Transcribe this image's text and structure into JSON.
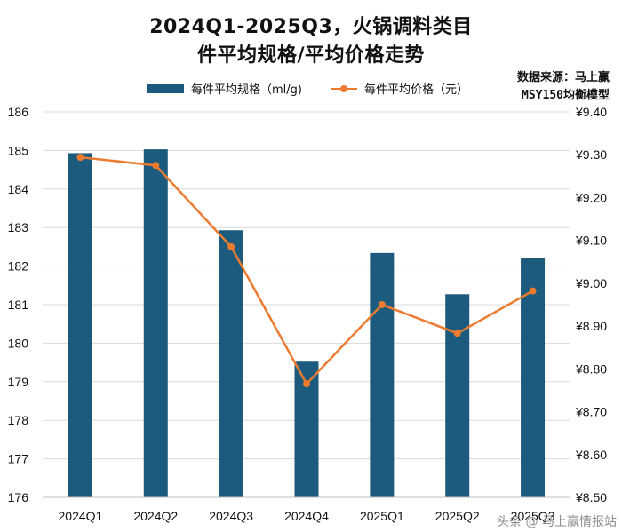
{
  "title": {
    "line1": "2024Q1-2025Q3，火锅调料类目",
    "line2": "件平均规格/平均价格走势"
  },
  "source": {
    "line1": "数据来源：马上赢",
    "line2": "MSY150均衡模型"
  },
  "watermark": "头条 @ 马上赢情报站",
  "colors": {
    "bar": "#1c5b7d",
    "line": "#ec7a2f",
    "grid": "#d9d9d9",
    "text": "#111111"
  },
  "chart_data": {
    "type": "bar+line",
    "categories": [
      "2024Q1",
      "2024Q2",
      "2024Q3",
      "2024Q4",
      "2025Q1",
      "2025Q2",
      "2025Q3"
    ],
    "series": [
      {
        "name": "每件平均规格（ml/g)",
        "type": "bar",
        "axis": "left",
        "values": [
          184.93,
          185.03,
          182.93,
          179.52,
          182.34,
          181.27,
          182.2
        ]
      },
      {
        "name": "每件平均价格（元）",
        "type": "line",
        "axis": "right",
        "values": [
          9.294,
          9.275,
          9.085,
          8.765,
          8.95,
          8.883,
          8.982
        ]
      }
    ],
    "y_left": {
      "min": 176,
      "max": 186,
      "ticks": [
        "186",
        "185",
        "184",
        "183",
        "182",
        "181",
        "180",
        "179",
        "178",
        "177",
        "176"
      ]
    },
    "y_right": {
      "min": 8.5,
      "max": 9.4,
      "ticks": [
        "¥9.40",
        "¥9.30",
        "¥9.20",
        "¥9.10",
        "¥9.00",
        "¥8.90",
        "¥8.80",
        "¥8.70",
        "¥8.60",
        "¥8.50"
      ]
    },
    "grid": true,
    "legend_position": "top"
  }
}
